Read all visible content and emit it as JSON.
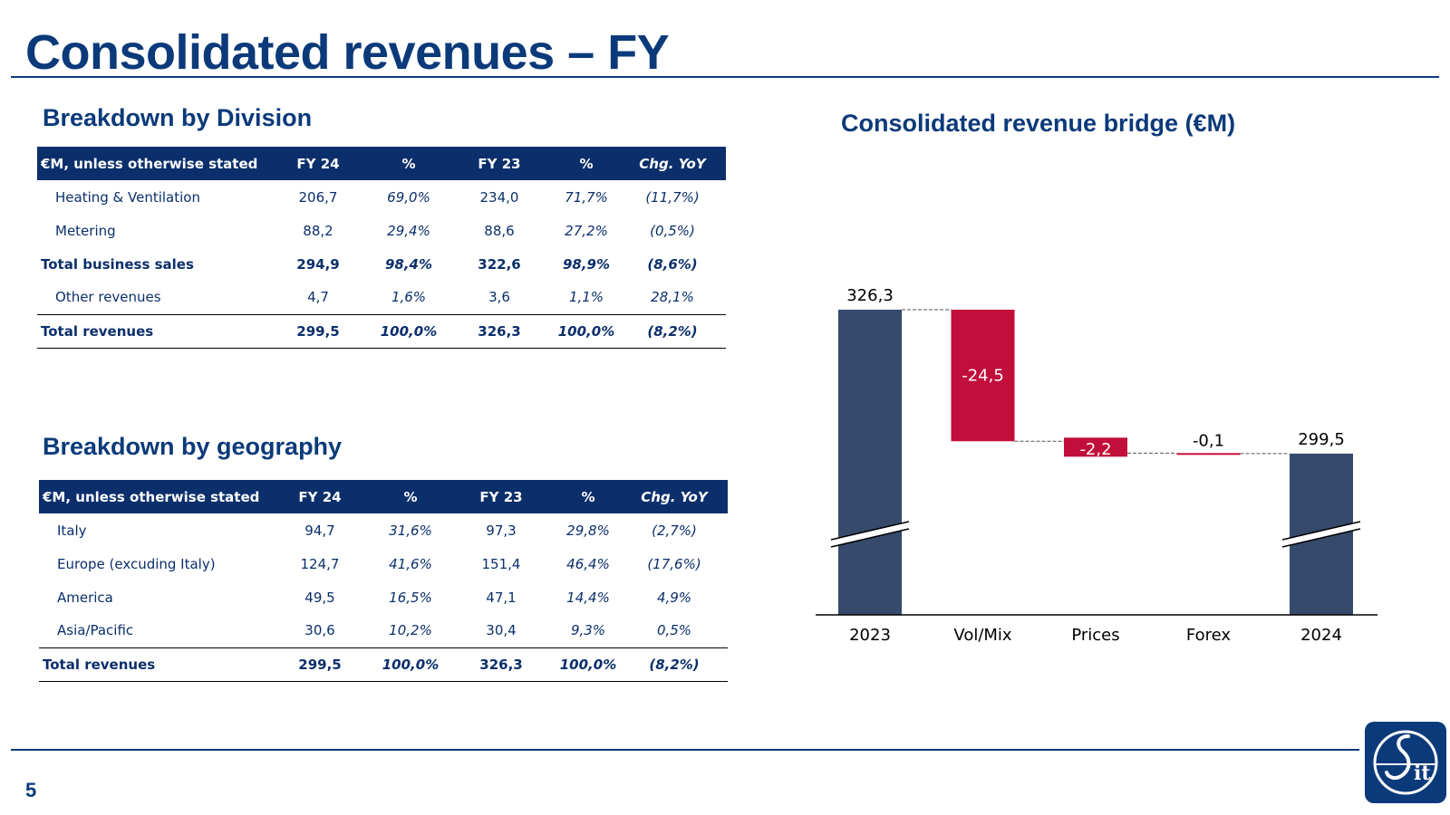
{
  "title": "Consolidated revenues – FY",
  "page_number": "5",
  "division": {
    "heading": "Breakdown by Division",
    "columns": [
      "€M, unless otherwise stated",
      "FY 24",
      "%",
      "FY  23",
      "%",
      "Chg. YoY"
    ],
    "rows": [
      {
        "label": "Heating & Ventilation",
        "fy24": "206,7",
        "pct24": "69,0%",
        "fy23": "234,0",
        "pct23": "71,7%",
        "chg": "(11,7%)"
      },
      {
        "label": "Metering",
        "fy24": "88,2",
        "pct24": "29,4%",
        "fy23": "88,6",
        "pct23": "27,2%",
        "chg": "(0,5%)"
      },
      {
        "label": "Total business sales",
        "fy24": "294,9",
        "pct24": "98,4%",
        "fy23": "322,6",
        "pct23": "98,9%",
        "chg": "(8,6%)"
      },
      {
        "label": "Other revenues",
        "fy24": "4,7",
        "pct24": "1,6%",
        "fy23": "3,6",
        "pct23": "1,1%",
        "chg": "28,1%"
      },
      {
        "label": "Total revenues",
        "fy24": "299,5",
        "pct24": "100,0%",
        "fy23": "326,3",
        "pct23": "100,0%",
        "chg": "(8,2%)"
      }
    ]
  },
  "geography": {
    "heading": "Breakdown by geography",
    "columns": [
      "€M, unless otherwise stated",
      "FY 24",
      "%",
      "FY  23",
      "%",
      "Chg. YoY"
    ],
    "rows": [
      {
        "label": "Italy",
        "fy24": "94,7",
        "pct24": "31,6%",
        "fy23": "97,3",
        "pct23": "29,8%",
        "chg": "(2,7%)"
      },
      {
        "label": "Europe (excuding Italy)",
        "fy24": "124,7",
        "pct24": "41,6%",
        "fy23": "151,4",
        "pct23": "46,4%",
        "chg": "(17,6%)"
      },
      {
        "label": "America",
        "fy24": "49,5",
        "pct24": "16,5%",
        "fy23": "47,1",
        "pct23": "14,4%",
        "chg": "4,9%"
      },
      {
        "label": "Asia/Pacific",
        "fy24": "30,6",
        "pct24": "10,2%",
        "fy23": "30,4",
        "pct23": "9,3%",
        "chg": "0,5%"
      },
      {
        "label": "Total revenues",
        "fy24": "299,5",
        "pct24": "100,0%",
        "fy23": "326,3",
        "pct23": "100,0%",
        "chg": "(8,2%)"
      }
    ]
  },
  "chart_data": {
    "type": "bar",
    "subtype": "waterfall",
    "title": "Consolidated revenue bridge (€M)",
    "categories": [
      "2023",
      "Vol/Mix",
      "Prices",
      "Forex",
      "2024"
    ],
    "values": [
      326.3,
      -24.5,
      -2.2,
      -0.1,
      299.5
    ],
    "labels": [
      "326,3",
      "-24,5",
      "-2,2",
      "-0,1",
      "299,5"
    ],
    "kinds": [
      "total",
      "delta",
      "delta",
      "delta",
      "total"
    ],
    "broken_axis": true,
    "colors": {
      "total": "#364a6b",
      "negative": "#c20e3a"
    }
  },
  "colors": {
    "brand": "#0b3a7a",
    "header_fill": "#0b2f6b"
  },
  "logo_icon": "sit-logo-icon"
}
